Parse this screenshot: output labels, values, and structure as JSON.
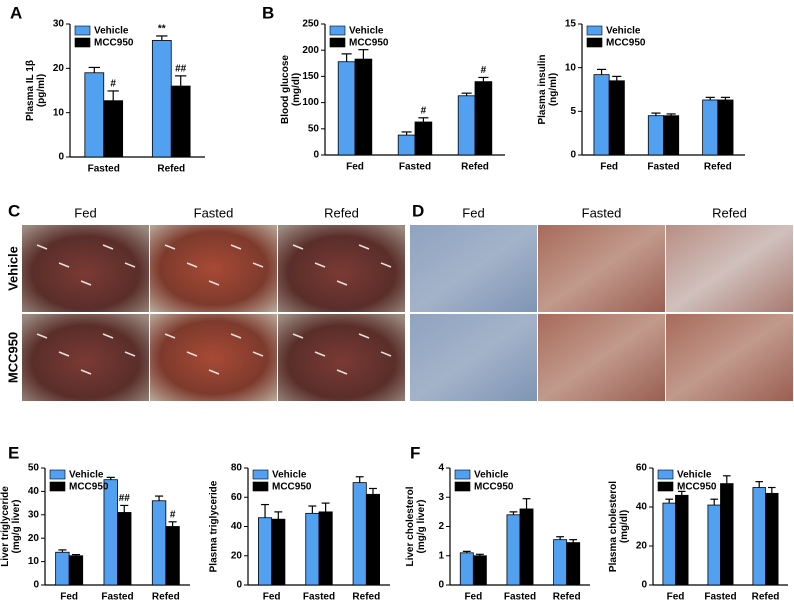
{
  "chart_data": [
    {
      "type": "bar",
      "panel": "A",
      "ylabel": [
        "Plasma IL 1β",
        "(pg/ml)"
      ],
      "categories": [
        "Fasted",
        "Refed"
      ],
      "series": [
        {
          "name": "Vehicle",
          "color": "#52a0f0",
          "values": [
            19,
            26.3
          ],
          "errors": [
            1.2,
            1
          ],
          "annotations": [
            null,
            "**"
          ]
        },
        {
          "name": "MCC950",
          "color": "#000000",
          "values": [
            12.7,
            16
          ],
          "errors": [
            2.2,
            2.3
          ],
          "annotations": [
            "#",
            "##"
          ]
        }
      ],
      "ylim": [
        0,
        30
      ],
      "yticks": [
        0,
        10,
        20,
        30
      ]
    },
    {
      "type": "bar",
      "panel": "B",
      "ylabel": [
        "Blood glucose",
        "(mg/dl)"
      ],
      "categories": [
        "Fed",
        "Fasted",
        "Refed"
      ],
      "series": [
        {
          "name": "Vehicle",
          "color": "#52a0f0",
          "values": [
            178,
            38,
            113
          ],
          "errors": [
            15,
            6,
            5
          ]
        },
        {
          "name": "MCC950",
          "color": "#000000",
          "values": [
            183,
            63,
            140
          ],
          "errors": [
            18,
            8,
            8
          ],
          "annotations": [
            null,
            "#",
            "#"
          ]
        }
      ],
      "ylim": [
        0,
        250
      ],
      "yticks": [
        0,
        50,
        100,
        150,
        200,
        250
      ]
    },
    {
      "type": "bar",
      "ylabel": [
        "Plasma insulin",
        "(ng/ml)"
      ],
      "categories": [
        "Fed",
        "Fasted",
        "Refed"
      ],
      "series": [
        {
          "name": "Vehicle",
          "color": "#52a0f0",
          "values": [
            9.2,
            4.5,
            6.3
          ],
          "errors": [
            0.6,
            0.3,
            0.3
          ]
        },
        {
          "name": "MCC950",
          "color": "#000000",
          "values": [
            8.5,
            4.5,
            6.3
          ],
          "errors": [
            0.5,
            0.2,
            0.3
          ]
        }
      ],
      "ylim": [
        0,
        15
      ],
      "yticks": [
        0,
        5,
        10,
        15
      ]
    },
    {
      "type": "bar",
      "panel": "E",
      "ylabel": [
        "Liver triglyceride",
        "(mg/g liver)"
      ],
      "categories": [
        "Fed",
        "Fasted",
        "Refed"
      ],
      "series": [
        {
          "name": "Vehicle",
          "color": "#52a0f0",
          "values": [
            14,
            45,
            36
          ],
          "errors": [
            1,
            1,
            2
          ]
        },
        {
          "name": "MCC950",
          "color": "#000000",
          "values": [
            12.5,
            31,
            25
          ],
          "errors": [
            0.5,
            3,
            2
          ],
          "annotations": [
            null,
            "##",
            "#"
          ]
        }
      ],
      "ylim": [
        0,
        50
      ],
      "yticks": [
        0,
        10,
        20,
        30,
        40,
        50
      ]
    },
    {
      "type": "bar",
      "ylabel": [
        "Plasma triglyceride"
      ],
      "categories": [
        "Fed",
        "Fasted",
        "Refed"
      ],
      "series": [
        {
          "name": "Vehicle",
          "color": "#52a0f0",
          "values": [
            46,
            49,
            70
          ],
          "errors": [
            9,
            5,
            4
          ]
        },
        {
          "name": "MCC950",
          "color": "#000000",
          "values": [
            45,
            50,
            62
          ],
          "errors": [
            5,
            6,
            4
          ]
        }
      ],
      "ylim": [
        0,
        80
      ],
      "yticks": [
        0,
        20,
        40,
        60,
        80
      ]
    },
    {
      "type": "bar",
      "panel": "F",
      "ylabel": [
        "Liver  cholesterol",
        "(mg/g liver)"
      ],
      "categories": [
        "Fed",
        "Fasted",
        "Refed"
      ],
      "series": [
        {
          "name": "Vehicle",
          "color": "#52a0f0",
          "values": [
            1.1,
            2.4,
            1.55
          ],
          "errors": [
            0.05,
            0.1,
            0.1
          ]
        },
        {
          "name": "MCC950",
          "color": "#000000",
          "values": [
            1.0,
            2.6,
            1.45
          ],
          "errors": [
            0.05,
            0.35,
            0.1
          ]
        }
      ],
      "ylim": [
        0,
        4
      ],
      "yticks": [
        0,
        1,
        2,
        3,
        4
      ]
    },
    {
      "type": "bar",
      "ylabel": [
        "Plasma cholesterol",
        "(mg/dl)"
      ],
      "categories": [
        "Fed",
        "Fasted",
        "Refed"
      ],
      "series": [
        {
          "name": "Vehicle",
          "color": "#52a0f0",
          "values": [
            42,
            41,
            50
          ],
          "errors": [
            2,
            3,
            3
          ]
        },
        {
          "name": "MCC950",
          "color": "#000000",
          "values": [
            46,
            52,
            47
          ],
          "errors": [
            2,
            4,
            3
          ]
        }
      ],
      "ylim": [
        0,
        60
      ],
      "yticks": [
        0,
        20,
        40,
        60
      ]
    }
  ],
  "photos": [
    {
      "panel": "C",
      "columns": [
        "Fed",
        "Fasted",
        "Refed"
      ],
      "rows": [
        "Vehicle",
        "MCC950"
      ]
    },
    {
      "panel": "D",
      "columns": [
        "Fed",
        "Fasted",
        "Refed"
      ]
    }
  ]
}
